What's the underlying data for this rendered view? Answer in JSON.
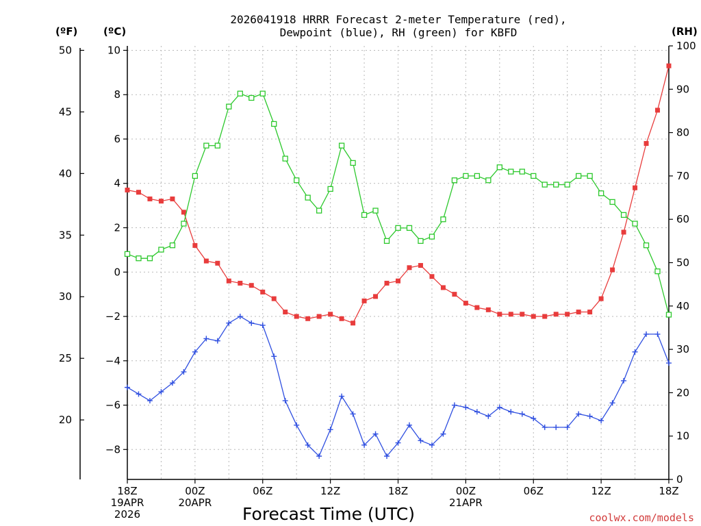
{
  "chart_data": {
    "type": "line",
    "title_line1": "2026041918 HRRR Forecast 2-meter Temperature (red),",
    "title_line2": "Dewpoint (blue), RH (green) for KBFD",
    "xlabel": "Forecast Time (UTC)",
    "credit": "coolwx.com/models",
    "left_unit_f": "(ºF)",
    "left_unit_c": "(ºC)",
    "right_unit": "(RH)",
    "forecast_hours": [
      0,
      1,
      2,
      3,
      4,
      5,
      6,
      7,
      8,
      9,
      10,
      11,
      12,
      13,
      14,
      15,
      16,
      17,
      18,
      19,
      20,
      21,
      22,
      23,
      24,
      25,
      26,
      27,
      28,
      29,
      30,
      31,
      32,
      33,
      34,
      35,
      36,
      37,
      38,
      39,
      40,
      41,
      42,
      43,
      44,
      45,
      46,
      47,
      48
    ],
    "x_ticks": [
      {
        "hour": 0,
        "lines": [
          "18Z",
          "19APR",
          "2026"
        ]
      },
      {
        "hour": 6,
        "lines": [
          "00Z",
          "20APR"
        ]
      },
      {
        "hour": 12,
        "lines": [
          "06Z"
        ]
      },
      {
        "hour": 18,
        "lines": [
          "12Z"
        ]
      },
      {
        "hour": 24,
        "lines": [
          "18Z"
        ]
      },
      {
        "hour": 30,
        "lines": [
          "00Z",
          "21APR"
        ]
      },
      {
        "hour": 36,
        "lines": [
          "06Z"
        ]
      },
      {
        "hour": 42,
        "lines": [
          "12Z"
        ]
      },
      {
        "hour": 48,
        "lines": [
          "18Z"
        ]
      }
    ],
    "ylim_c": [
      -9.35,
      10.2
    ],
    "c_ticks": [
      10,
      8,
      6,
      4,
      2,
      0,
      -2,
      -4,
      -6,
      -8
    ],
    "f_ticks": [
      50,
      45,
      40,
      35,
      30,
      25,
      20
    ],
    "rh_lim": [
      0,
      100
    ],
    "rh_ticks": [
      100,
      90,
      80,
      70,
      60,
      50,
      40,
      30,
      20,
      10,
      0
    ],
    "grid": true,
    "series": [
      {
        "name": "Temperature",
        "color": "#e83c3c",
        "marker": "filled-square",
        "axis": "C",
        "values": [
          3.7,
          3.6,
          3.3,
          3.2,
          3.3,
          2.7,
          1.2,
          0.5,
          0.4,
          -0.4,
          -0.5,
          -0.6,
          -0.9,
          -1.2,
          -1.8,
          -2.0,
          -2.1,
          -2.0,
          -1.9,
          -2.1,
          -2.3,
          -1.3,
          -1.1,
          -0.5,
          -0.4,
          0.2,
          0.3,
          -0.2,
          -0.7,
          -1.0,
          -1.4,
          -1.6,
          -1.7,
          -1.9,
          -1.9,
          -1.9,
          -2.0,
          -2.0,
          -1.9,
          -1.9,
          -1.8,
          -1.8,
          -1.2,
          0.1,
          1.8,
          3.8,
          5.8,
          7.3,
          9.3
        ]
      },
      {
        "name": "Dewpoint",
        "color": "#2f4fe0",
        "marker": "plus",
        "axis": "C",
        "values": [
          -5.2,
          -5.5,
          -5.8,
          -5.4,
          -5.0,
          -4.5,
          -3.6,
          -3.0,
          -3.1,
          -2.3,
          -2.0,
          -2.3,
          -2.4,
          -3.8,
          -5.8,
          -6.9,
          -7.8,
          -8.3,
          -7.1,
          -5.6,
          -6.4,
          -7.8,
          -7.3,
          -8.3,
          -7.7,
          -6.9,
          -7.6,
          -7.8,
          -7.3,
          -6.0,
          -6.1,
          -6.3,
          -6.5,
          -6.1,
          -6.3,
          -6.4,
          -6.6,
          -7.0,
          -7.0,
          -7.0,
          -6.4,
          -6.5,
          -6.7,
          -5.9,
          -4.9,
          -3.6,
          -2.8,
          -2.8,
          -4.1
        ]
      },
      {
        "name": "RH",
        "color": "#2cc82c",
        "marker": "open-square",
        "axis": "RH",
        "values": [
          52,
          51,
          51,
          53,
          54,
          59,
          70,
          77,
          77,
          86,
          89,
          88,
          89,
          82,
          74,
          69,
          65,
          62,
          67,
          77,
          73,
          61,
          62,
          55,
          58,
          58,
          55,
          56,
          60,
          69,
          70,
          70,
          69,
          72,
          71,
          71,
          70,
          68,
          68,
          68,
          70,
          70,
          66,
          64,
          61,
          59,
          54,
          48,
          38
        ]
      }
    ]
  }
}
